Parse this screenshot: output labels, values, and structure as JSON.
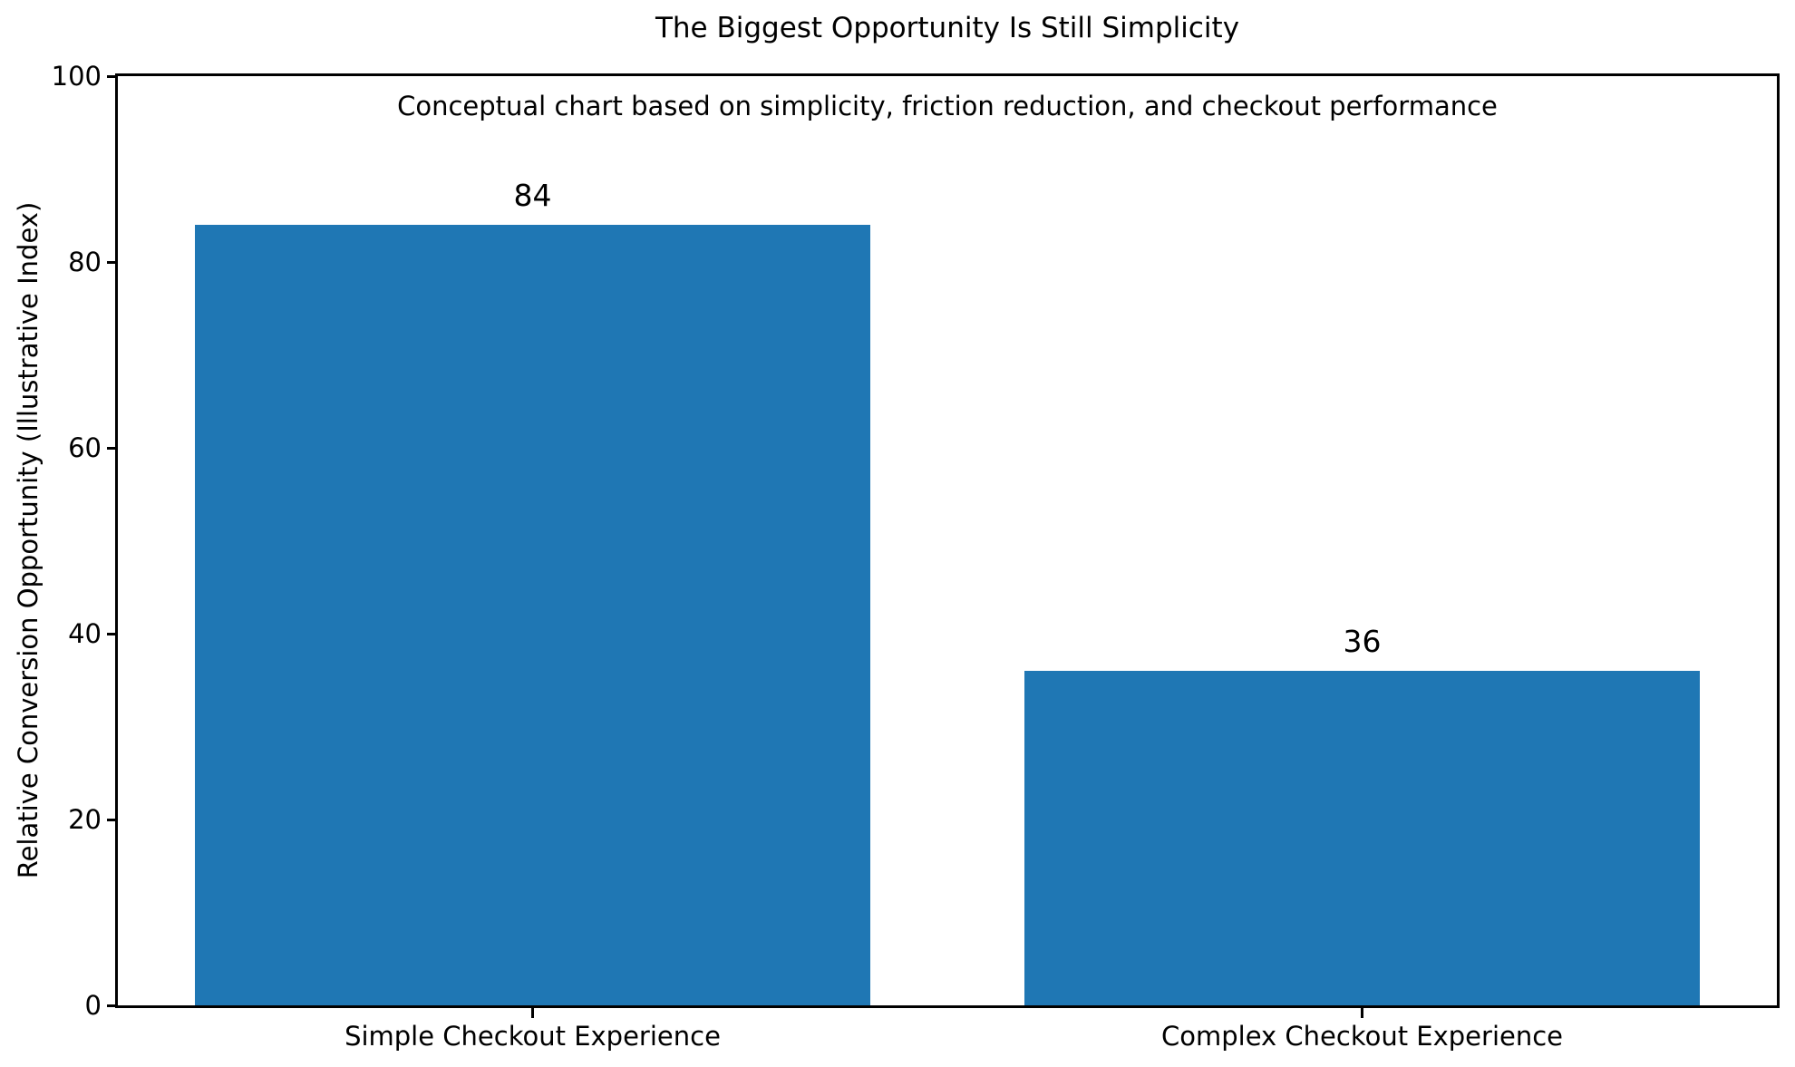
{
  "figure": {
    "background": "#ffffff"
  },
  "chart_data": {
    "type": "bar",
    "title": "The Biggest Opportunity Is Still Simplicity",
    "subtitle": "Conceptual chart based on simplicity, friction reduction, and checkout performance",
    "ylabel": "Relative Conversion Opportunity (Illustrative Index)",
    "xlabel": "",
    "categories": [
      "Simple Checkout Experience",
      "Complex Checkout Experience"
    ],
    "values": [
      84,
      36
    ],
    "value_labels": [
      "84",
      "36"
    ],
    "ylim": [
      0,
      100
    ],
    "yticks": [
      0,
      20,
      40,
      60,
      80,
      100
    ],
    "bar_color": "#1f77b4",
    "axis_color": "#000000",
    "text_color": "#000000",
    "grid": false,
    "legend": "none"
  }
}
